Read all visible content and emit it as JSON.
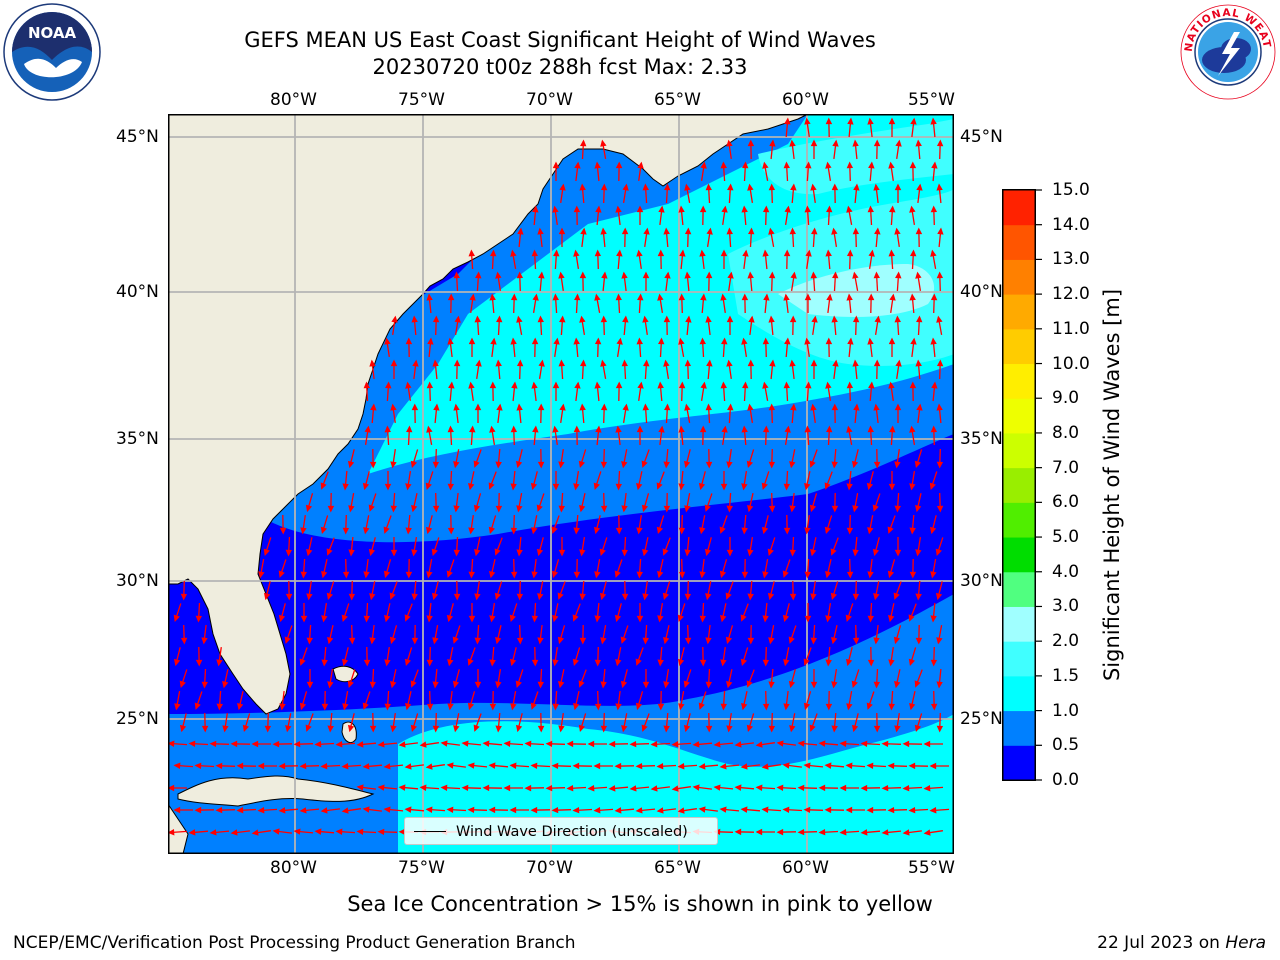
{
  "title": {
    "line1": "GEFS MEAN US East Coast Significant Height of Wind Waves",
    "line2": "20230720 t00z 288h fcst   Max: 2.33"
  },
  "logos": {
    "left": {
      "text": "NOAA"
    },
    "right": {
      "text": "NATIONAL WEATHER SERVICE"
    }
  },
  "map": {
    "lon_ticks": [
      "80°W",
      "75°W",
      "70°W",
      "65°W",
      "60°W",
      "55°W"
    ],
    "lat_ticks": [
      "45°N",
      "40°N",
      "35°N",
      "30°N",
      "25°N"
    ],
    "gridlines": true,
    "colors": {
      "land": "#efedde",
      "grid": "#b4b4b4",
      "arrow": "#ff0000",
      "coast": "#000000"
    },
    "legend": "Wind Wave Direction (unscaled)"
  },
  "colorbar": {
    "label": "Significant Height of Wind Waves [m]",
    "ticks": [
      "0.0",
      "0.5",
      "1.0",
      "1.5",
      "2.0",
      "3.0",
      "4.0",
      "5.0",
      "6.0",
      "7.0",
      "8.0",
      "9.0",
      "10.0",
      "11.0",
      "12.0",
      "13.0",
      "14.0",
      "15.0"
    ],
    "colors": [
      "#0000ff",
      "#0080ff",
      "#00ffff",
      "#40ffff",
      "#a0ffff",
      "#50ff80",
      "#00dd00",
      "#50ee00",
      "#99ee00",
      "#ccff00",
      "#eeff00",
      "#ffee00",
      "#ffcc00",
      "#ffaa00",
      "#ff8000",
      "#ff5500",
      "#ff2200"
    ]
  },
  "subtitle": "Sea Ice Concentration > 15% is shown in pink to yellow",
  "footer": {
    "left": "NCEP/EMC/Verification Post Processing Product Generation Branch",
    "right_date": "22 Jul 2023 on",
    "right_host": "Hera"
  }
}
